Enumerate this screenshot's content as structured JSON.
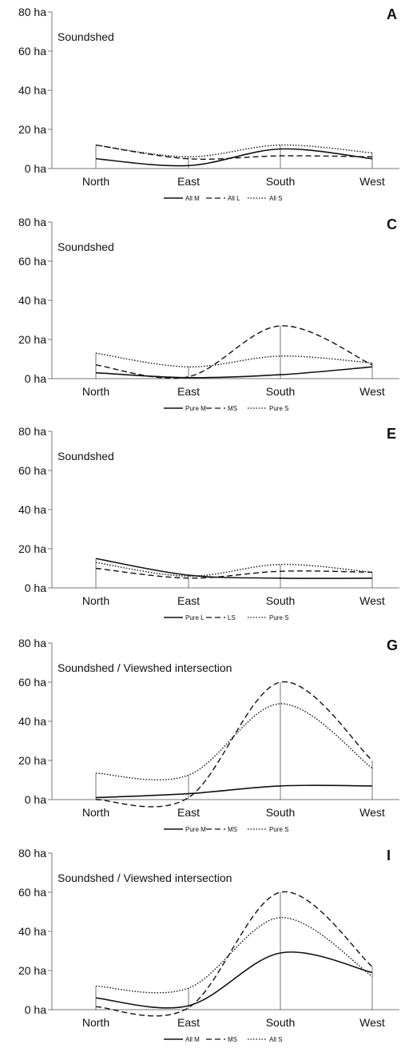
{
  "chart_data": [
    {
      "type": "line",
      "panel_label": "A",
      "subtitle": "Soundshed",
      "categories": [
        "North",
        "East",
        "South",
        "West"
      ],
      "yticks": [
        "0 ha",
        "20 ha",
        "40 ha",
        "60 ha",
        "80 ha"
      ],
      "ylim": [
        0,
        80
      ],
      "series": [
        {
          "name": "All M",
          "style": "solid",
          "values": [
            5,
            1.5,
            10,
            5
          ]
        },
        {
          "name": "All L",
          "style": "dashed",
          "values": [
            12,
            5,
            6.5,
            6
          ]
        },
        {
          "name": "All S",
          "style": "dotted",
          "values": [
            12,
            6,
            12,
            8
          ]
        }
      ]
    },
    {
      "type": "line",
      "panel_label": "C",
      "subtitle": "Soundshed",
      "categories": [
        "North",
        "East",
        "South",
        "West"
      ],
      "yticks": [
        "0 ha",
        "20 ha",
        "40 ha",
        "60 ha",
        "80 ha"
      ],
      "ylim": [
        0,
        80
      ],
      "series": [
        {
          "name": "Pure M",
          "style": "solid",
          "values": [
            3,
            0.5,
            2,
            6
          ]
        },
        {
          "name": "MS",
          "style": "dashed",
          "values": [
            7,
            1,
            27,
            7
          ]
        },
        {
          "name": "Pure S",
          "style": "dotted",
          "values": [
            13,
            6,
            11.5,
            8
          ]
        }
      ]
    },
    {
      "type": "line",
      "panel_label": "E",
      "subtitle": "Soundshed",
      "categories": [
        "North",
        "East",
        "South",
        "West"
      ],
      "yticks": [
        "0 ha",
        "20 ha",
        "40 ha",
        "60 ha",
        "80 ha"
      ],
      "ylim": [
        0,
        80
      ],
      "series": [
        {
          "name": "Pure L",
          "style": "solid",
          "values": [
            15,
            6.5,
            5,
            5
          ]
        },
        {
          "name": "LS",
          "style": "dashed",
          "values": [
            10,
            5,
            8.5,
            8
          ]
        },
        {
          "name": "Pure S",
          "style": "dotted",
          "values": [
            13,
            6,
            12,
            8
          ]
        }
      ]
    },
    {
      "type": "line",
      "panel_label": "G",
      "subtitle": "Soundshed / Viewshed intersection",
      "categories": [
        "North",
        "East",
        "South",
        "West"
      ],
      "yticks": [
        "0 ha",
        "20 ha",
        "40 ha",
        "60 ha",
        "80 ha"
      ],
      "ylim": [
        0,
        80
      ],
      "series": [
        {
          "name": "Pure M",
          "style": "solid",
          "values": [
            1,
            3,
            7,
            7
          ]
        },
        {
          "name": "MS",
          "style": "dashed",
          "values": [
            0,
            1,
            60,
            20
          ]
        },
        {
          "name": "Pure S",
          "style": "dotted",
          "values": [
            13.5,
            12.5,
            49,
            16
          ]
        }
      ]
    },
    {
      "type": "line",
      "panel_label": "I",
      "subtitle": "Soundshed / Viewshed intersection",
      "categories": [
        "North",
        "East",
        "South",
        "West"
      ],
      "yticks": [
        "0 ha",
        "20 ha",
        "40 ha",
        "60 ha",
        "80 ha"
      ],
      "ylim": [
        0,
        80
      ],
      "series": [
        {
          "name": "All M",
          "style": "solid",
          "values": [
            6,
            2,
            29,
            19
          ]
        },
        {
          "name": "MS",
          "style": "dashed",
          "values": [
            1.5,
            1,
            60,
            22
          ]
        },
        {
          "name": "All S",
          "style": "dotted",
          "values": [
            12,
            11,
            47,
            17
          ]
        }
      ]
    }
  ]
}
